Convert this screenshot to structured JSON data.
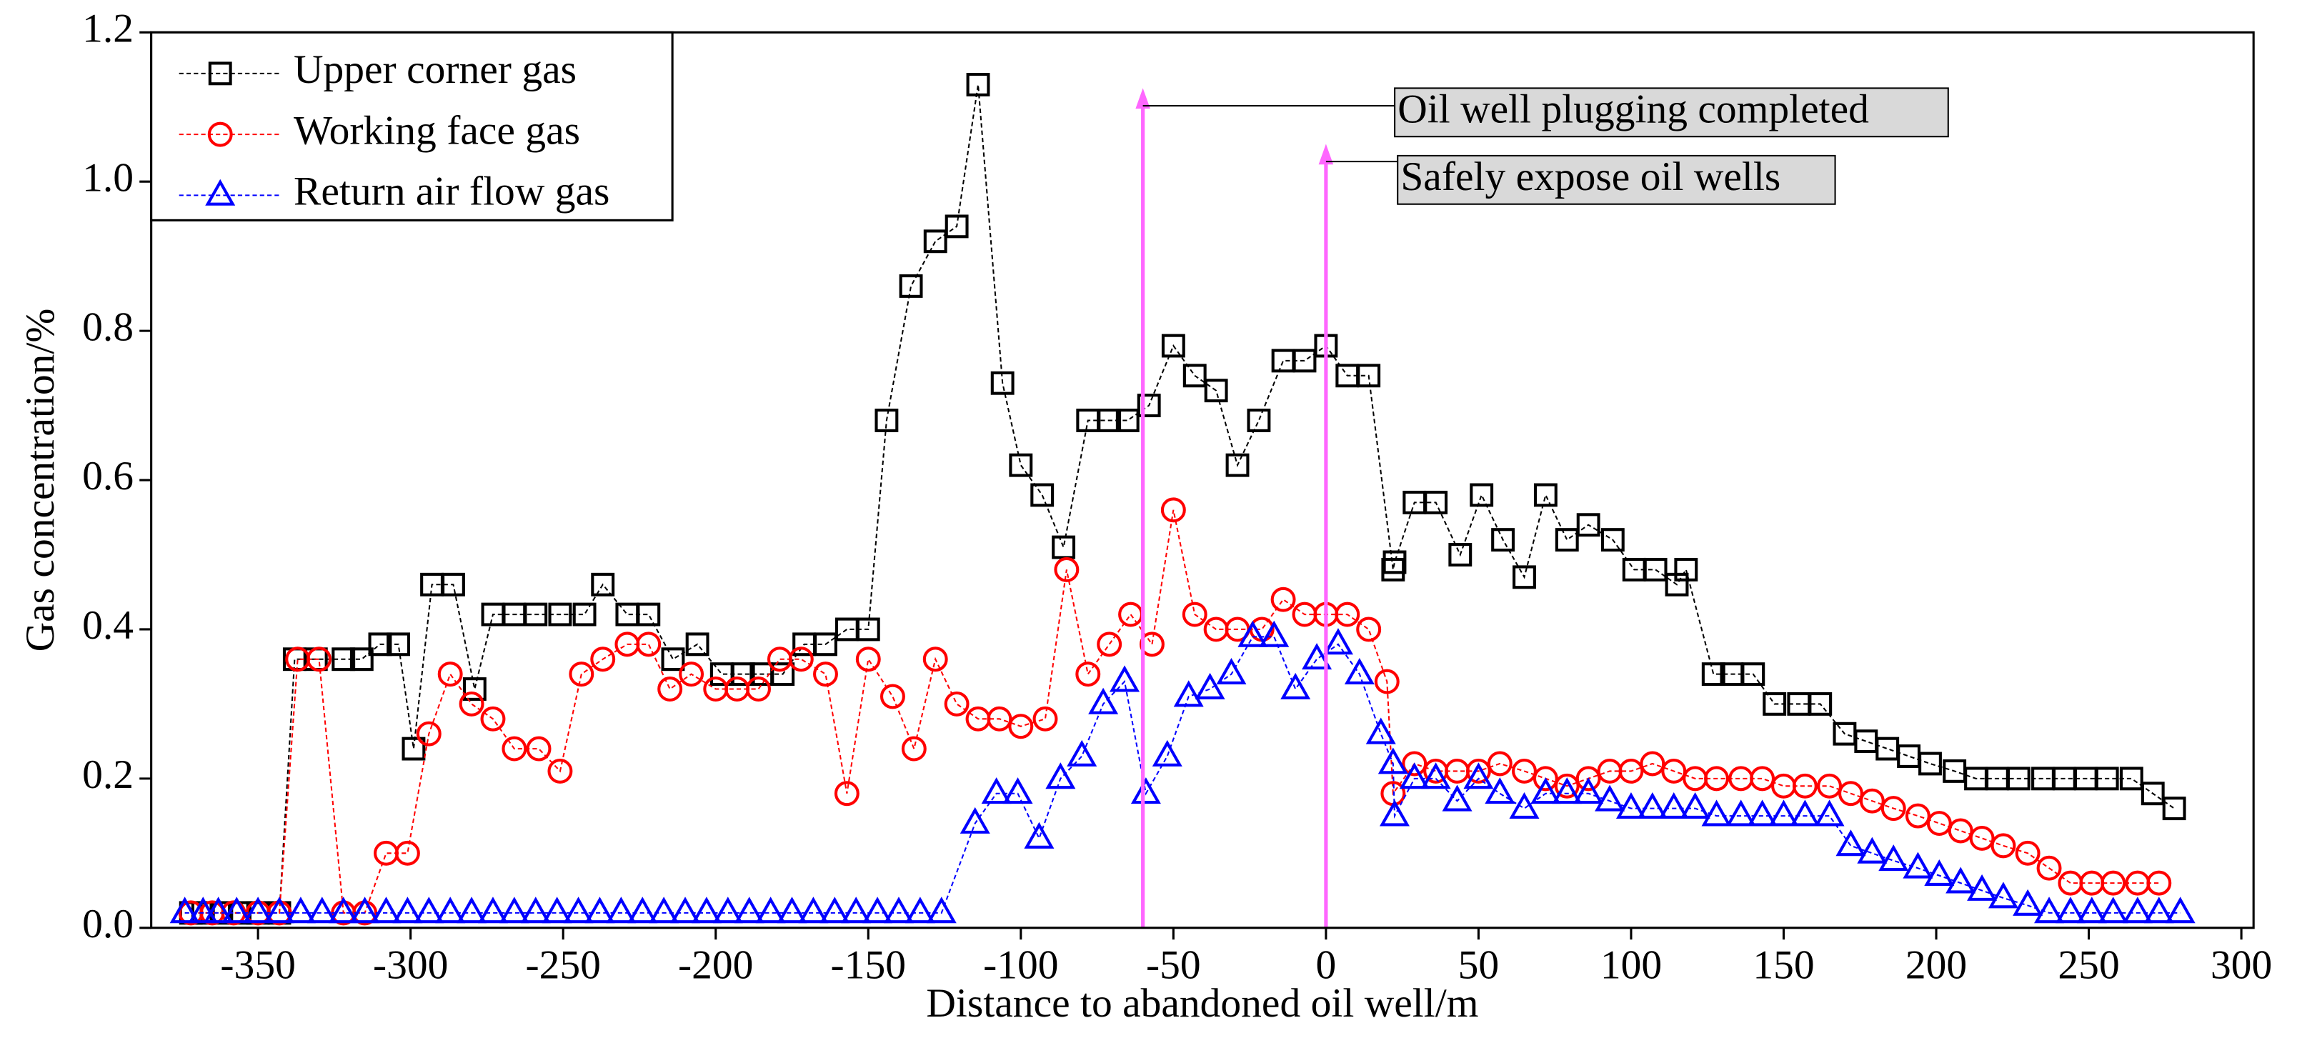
{
  "chart_data": {
    "type": "line",
    "xlabel": "Distance to abandoned oil well/m",
    "ylabel": "Gas concentration/%",
    "xlim": [
      -385,
      304
    ],
    "ylim": [
      0,
      1.2
    ],
    "xticks": [
      -350,
      -300,
      -250,
      -200,
      -150,
      -100,
      -50,
      0,
      50,
      100,
      150,
      200,
      250,
      300
    ],
    "yticks": [
      {
        "value": 0,
        "label": "0.0"
      },
      0.2,
      0.4,
      0.6,
      0.8,
      {
        "value": 1,
        "label": "1.0"
      },
      1.2
    ],
    "legend": "upper left",
    "vlines": [
      {
        "x": -60,
        "label": "Oil well plugging completed",
        "color": "#ff66ff"
      },
      {
        "x": 0,
        "label": "Safely expose oil wells",
        "color": "#ff66ff"
      }
    ],
    "series": [
      {
        "name": "Upper corner gas",
        "color": "#000000",
        "marker": "square",
        "x": [
          -372,
          -368,
          -362,
          -356,
          -350,
          -343,
          -338,
          -331,
          -322,
          -316,
          -310,
          -304,
          -299,
          -293,
          -286,
          -279,
          -273,
          -266,
          -259,
          -251,
          -243,
          -237,
          -229,
          -222,
          -214,
          -206,
          -198,
          -191,
          -185,
          -178,
          -171,
          -164,
          -157,
          -150,
          -144,
          -136,
          -128,
          -121,
          -114,
          -106,
          -100,
          -93,
          -86,
          -78,
          -71,
          -65,
          -58,
          -50,
          -43,
          -36,
          -29,
          -22,
          -14,
          -7,
          0,
          7,
          14,
          22,
          22.5,
          29,
          36,
          44,
          51,
          58,
          65,
          72,
          79,
          86,
          94,
          101,
          108,
          115,
          118,
          127,
          133,
          140,
          147,
          155,
          162,
          170,
          177,
          184,
          191,
          198,
          206,
          213,
          220,
          227,
          235,
          242,
          249,
          256,
          264,
          271,
          278
        ],
        "values": [
          0.02,
          0.02,
          0.02,
          0.02,
          0.02,
          0.02,
          0.36,
          0.36,
          0.36,
          0.36,
          0.38,
          0.38,
          0.24,
          0.46,
          0.46,
          0.32,
          0.42,
          0.42,
          0.42,
          0.42,
          0.42,
          0.46,
          0.42,
          0.42,
          0.36,
          0.38,
          0.34,
          0.34,
          0.34,
          0.34,
          0.38,
          0.38,
          0.4,
          0.4,
          0.68,
          0.86,
          0.92,
          0.94,
          1.13,
          0.73,
          0.62,
          0.58,
          0.51,
          0.68,
          0.68,
          0.68,
          0.7,
          0.78,
          0.74,
          0.72,
          0.62,
          0.68,
          0.76,
          0.76,
          0.78,
          0.74,
          0.74,
          0.48,
          0.49,
          0.57,
          0.57,
          0.5,
          0.58,
          0.52,
          0.47,
          0.58,
          0.52,
          0.54,
          0.52,
          0.48,
          0.48,
          0.46,
          0.48,
          0.34,
          0.34,
          0.34,
          0.3,
          0.3,
          0.3,
          0.26,
          0.25,
          0.24,
          0.23,
          0.22,
          0.21,
          0.2,
          0.2,
          0.2,
          0.2,
          0.2,
          0.2,
          0.2,
          0.2,
          0.18,
          0.16
        ]
      },
      {
        "name": "Working face gas",
        "color": "#ff0000",
        "marker": "circle",
        "x": [
          -372,
          -365,
          -358,
          -350,
          -343,
          -337,
          -330,
          -322,
          -315,
          -308,
          -301,
          -294,
          -287,
          -280,
          -273,
          -266,
          -258,
          -251,
          -244,
          -237,
          -229,
          -222,
          -215,
          -208,
          -200,
          -193,
          -186,
          -179,
          -172,
          -164,
          -157,
          -150,
          -142,
          -135,
          -128,
          -121,
          -114,
          -107,
          -100,
          -92,
          -85,
          -78,
          -71,
          -64,
          -57,
          -50,
          -43,
          -36,
          -29,
          -21,
          -14,
          -7,
          0,
          7,
          14,
          20,
          22,
          29,
          36,
          43,
          50,
          57,
          65,
          72,
          79,
          86,
          93,
          100,
          107,
          114,
          121,
          128,
          136,
          143,
          150,
          157,
          165,
          172,
          179,
          186,
          194,
          201,
          208,
          215,
          222,
          230,
          237,
          244,
          251,
          258,
          266,
          273
        ],
        "values": [
          0.02,
          0.02,
          0.02,
          0.02,
          0.02,
          0.36,
          0.36,
          0.02,
          0.02,
          0.1,
          0.1,
          0.26,
          0.34,
          0.3,
          0.28,
          0.24,
          0.24,
          0.21,
          0.34,
          0.36,
          0.38,
          0.38,
          0.32,
          0.34,
          0.32,
          0.32,
          0.32,
          0.36,
          0.36,
          0.34,
          0.18,
          0.36,
          0.31,
          0.24,
          0.36,
          0.3,
          0.28,
          0.28,
          0.27,
          0.28,
          0.48,
          0.34,
          0.38,
          0.42,
          0.38,
          0.56,
          0.42,
          0.4,
          0.4,
          0.4,
          0.44,
          0.42,
          0.42,
          0.42,
          0.4,
          0.33,
          0.18,
          0.22,
          0.21,
          0.21,
          0.21,
          0.22,
          0.21,
          0.2,
          0.19,
          0.2,
          0.21,
          0.21,
          0.22,
          0.21,
          0.2,
          0.2,
          0.2,
          0.2,
          0.19,
          0.19,
          0.19,
          0.18,
          0.17,
          0.16,
          0.15,
          0.14,
          0.13,
          0.12,
          0.11,
          0.1,
          0.08,
          0.06,
          0.06,
          0.06,
          0.06,
          0.06
        ]
      },
      {
        "name": "Return air flow gas",
        "color": "#0000ff",
        "marker": "triangle",
        "x": [
          -374,
          -368,
          -363,
          -357,
          -350,
          -343,
          -336,
          -329,
          -322,
          -315,
          -308,
          -301,
          -294,
          -287,
          -280,
          -273,
          -266,
          -259,
          -252,
          -245,
          -238,
          -231,
          -224,
          -217,
          -210,
          -203,
          -196,
          -189,
          -182,
          -175,
          -168,
          -161,
          -154,
          -147,
          -140,
          -133,
          -126,
          -115,
          -108,
          -101,
          -94,
          -87,
          -80,
          -73,
          -66,
          -59,
          -52,
          -45,
          -38,
          -31,
          -24,
          -17,
          -10,
          -3,
          4,
          11,
          18,
          22,
          22.5,
          29,
          36,
          43,
          50,
          57,
          65,
          72,
          79,
          86,
          93,
          100,
          107,
          114,
          121,
          128,
          136,
          143,
          150,
          157,
          165,
          172,
          179,
          186,
          194,
          201,
          208,
          215,
          222,
          230,
          237,
          244,
          251,
          258,
          266,
          273,
          280
        ],
        "values": [
          0.02,
          0.02,
          0.02,
          0.02,
          0.02,
          0.02,
          0.02,
          0.02,
          0.02,
          0.02,
          0.02,
          0.02,
          0.02,
          0.02,
          0.02,
          0.02,
          0.02,
          0.02,
          0.02,
          0.02,
          0.02,
          0.02,
          0.02,
          0.02,
          0.02,
          0.02,
          0.02,
          0.02,
          0.02,
          0.02,
          0.02,
          0.02,
          0.02,
          0.02,
          0.02,
          0.02,
          0.02,
          0.14,
          0.18,
          0.18,
          0.12,
          0.2,
          0.23,
          0.3,
          0.33,
          0.18,
          0.23,
          0.31,
          0.32,
          0.34,
          0.39,
          0.39,
          0.32,
          0.36,
          0.38,
          0.34,
          0.26,
          0.22,
          0.15,
          0.2,
          0.2,
          0.17,
          0.2,
          0.18,
          0.16,
          0.18,
          0.18,
          0.18,
          0.17,
          0.16,
          0.16,
          0.16,
          0.16,
          0.15,
          0.15,
          0.15,
          0.15,
          0.15,
          0.15,
          0.11,
          0.1,
          0.09,
          0.08,
          0.07,
          0.06,
          0.05,
          0.04,
          0.03,
          0.02,
          0.02,
          0.02,
          0.02,
          0.02,
          0.02,
          0.02
        ]
      }
    ]
  }
}
